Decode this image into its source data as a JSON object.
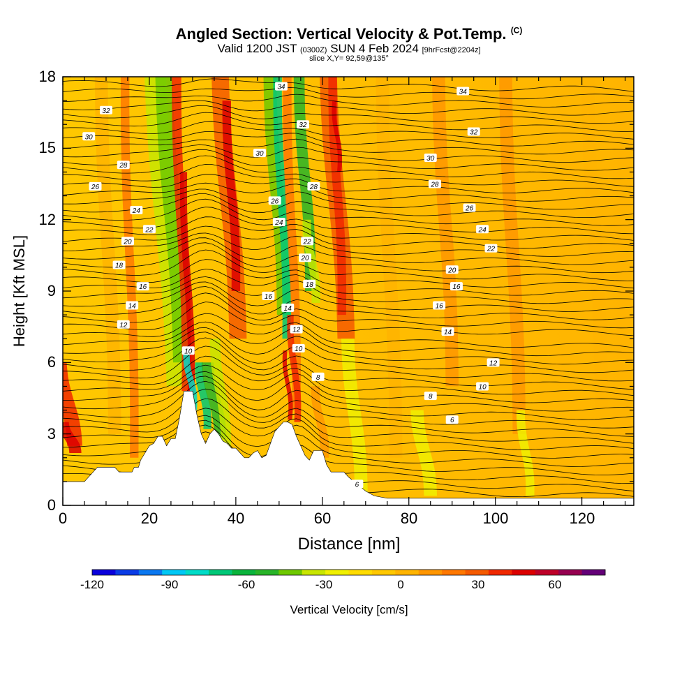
{
  "title": {
    "main": "Angled Section: Vertical Velocity & Pot.Temp.",
    "main_unit": "(C)",
    "valid_prefix": "Valid 1200 JST",
    "valid_utc": "(0300Z)",
    "valid_date": "SUN 4 Feb 2024",
    "forecast": "[9hrFcst@2204z]",
    "slice": "slice X,Y= 92,59@135°"
  },
  "chart_data": {
    "type": "heatmap",
    "xlabel": "Distance [nm]",
    "ylabel": "Height [Kft MSL]",
    "xlim": [
      0,
      132
    ],
    "ylim": [
      0,
      18
    ],
    "x_ticks": [
      "0",
      "20",
      "40",
      "60",
      "80",
      "100",
      "120"
    ],
    "x_tick_values": [
      0,
      20,
      40,
      60,
      80,
      100,
      120
    ],
    "y_ticks": [
      "0",
      "3",
      "6",
      "9",
      "12",
      "15",
      "18"
    ],
    "y_tick_values": [
      0,
      3,
      6,
      9,
      12,
      15,
      18
    ],
    "colorbar": {
      "label": "Vertical Velocity [cm/s]",
      "ticks": [
        "-120",
        "-90",
        "-60",
        "-30",
        "0",
        "30",
        "60"
      ],
      "tick_values": [
        -120,
        -90,
        -60,
        -30,
        0,
        30,
        60
      ],
      "range": [
        -120,
        80
      ],
      "colors": [
        "#0a00dc",
        "#0a3ce6",
        "#0a78f0",
        "#00c8f5",
        "#00dcc8",
        "#00c878",
        "#0ab43c",
        "#28b428",
        "#6ec800",
        "#c8e600",
        "#f0f000",
        "#ffdc00",
        "#ffc800",
        "#ffb400",
        "#ff9600",
        "#ff7800",
        "#f55a00",
        "#f02800",
        "#dc0000",
        "#be0028",
        "#960050",
        "#640078"
      ]
    },
    "terrain_top_kft": [
      [
        0,
        1.0
      ],
      [
        5,
        1.0
      ],
      [
        6,
        1.2
      ],
      [
        8,
        1.6
      ],
      [
        12,
        1.6
      ],
      [
        13,
        1.4
      ],
      [
        16,
        1.4
      ],
      [
        16.5,
        1.6
      ],
      [
        17.5,
        1.6
      ],
      [
        18,
        1.9
      ],
      [
        19,
        2.2
      ],
      [
        20,
        2.5
      ],
      [
        21,
        2.6
      ],
      [
        22,
        2.9
      ],
      [
        23,
        2.9
      ],
      [
        24,
        2.5
      ],
      [
        25,
        2.8
      ],
      [
        26,
        2.8
      ],
      [
        27,
        3.7
      ],
      [
        28,
        4.8
      ],
      [
        29,
        4.8
      ],
      [
        30,
        4.8
      ],
      [
        31,
        3.8
      ],
      [
        32,
        3.0
      ],
      [
        33,
        2.6
      ],
      [
        34,
        3.0
      ],
      [
        35,
        3.2
      ],
      [
        36,
        3.0
      ],
      [
        37,
        2.7
      ],
      [
        38,
        2.6
      ],
      [
        39,
        2.4
      ],
      [
        40,
        2.4
      ],
      [
        41,
        2.2
      ],
      [
        42,
        2.0
      ],
      [
        43,
        2.0
      ],
      [
        44,
        2.2
      ],
      [
        45,
        2.3
      ],
      [
        46,
        2.0
      ],
      [
        47,
        2.1
      ],
      [
        48,
        2.6
      ],
      [
        49,
        3.1
      ],
      [
        50,
        3.3
      ],
      [
        51,
        3.5
      ],
      [
        52,
        3.5
      ],
      [
        53,
        3.4
      ],
      [
        54,
        2.9
      ],
      [
        55,
        2.5
      ],
      [
        56,
        2.1
      ],
      [
        57,
        1.9
      ],
      [
        58,
        2.3
      ],
      [
        60,
        2.3
      ],
      [
        61,
        1.7
      ],
      [
        62,
        1.4
      ],
      [
        65,
        1.4
      ],
      [
        66,
        1.2
      ],
      [
        68,
        0.9
      ],
      [
        70,
        0.6
      ],
      [
        72,
        0.4
      ],
      [
        75,
        0.3
      ],
      [
        132,
        0.3
      ]
    ],
    "contour_labels": [
      {
        "text": "34",
        "x": 50.5,
        "y": 17.6
      },
      {
        "text": "34",
        "x": 92.5,
        "y": 17.4
      },
      {
        "text": "32",
        "x": 10,
        "y": 16.6
      },
      {
        "text": "32",
        "x": 55.5,
        "y": 16.0
      },
      {
        "text": "32",
        "x": 95,
        "y": 15.7
      },
      {
        "text": "30",
        "x": 6,
        "y": 15.5
      },
      {
        "text": "30",
        "x": 45.5,
        "y": 14.8
      },
      {
        "text": "30",
        "x": 85,
        "y": 14.6
      },
      {
        "text": "28",
        "x": 14,
        "y": 14.3
      },
      {
        "text": "28",
        "x": 58,
        "y": 13.4
      },
      {
        "text": "28",
        "x": 86,
        "y": 13.5
      },
      {
        "text": "26",
        "x": 7.5,
        "y": 13.4
      },
      {
        "text": "26",
        "x": 49,
        "y": 12.8
      },
      {
        "text": "26",
        "x": 94,
        "y": 12.5
      },
      {
        "text": "24",
        "x": 17,
        "y": 12.4
      },
      {
        "text": "24",
        "x": 50,
        "y": 11.9
      },
      {
        "text": "24",
        "x": 97,
        "y": 11.6
      },
      {
        "text": "22",
        "x": 20,
        "y": 11.6
      },
      {
        "text": "22",
        "x": 56.5,
        "y": 11.1
      },
      {
        "text": "22",
        "x": 99,
        "y": 10.8
      },
      {
        "text": "20",
        "x": 15,
        "y": 11.1
      },
      {
        "text": "20",
        "x": 56,
        "y": 10.4
      },
      {
        "text": "20",
        "x": 90,
        "y": 9.9
      },
      {
        "text": "18",
        "x": 13,
        "y": 10.1
      },
      {
        "text": "18",
        "x": 57,
        "y": 9.3
      },
      {
        "text": "16",
        "x": 18.5,
        "y": 9.2
      },
      {
        "text": "16",
        "x": 47.5,
        "y": 8.8
      },
      {
        "text": "16",
        "x": 91,
        "y": 9.2
      },
      {
        "text": "16",
        "x": 87,
        "y": 8.4
      },
      {
        "text": "14",
        "x": 16,
        "y": 8.4
      },
      {
        "text": "14",
        "x": 52,
        "y": 8.3
      },
      {
        "text": "14",
        "x": 89,
        "y": 7.3
      },
      {
        "text": "12",
        "x": 14,
        "y": 7.6
      },
      {
        "text": "12",
        "x": 54,
        "y": 7.4
      },
      {
        "text": "12",
        "x": 99.5,
        "y": 6.0
      },
      {
        "text": "10",
        "x": 29,
        "y": 6.5
      },
      {
        "text": "10",
        "x": 54.5,
        "y": 6.6
      },
      {
        "text": "10",
        "x": 97,
        "y": 5.0
      },
      {
        "text": "8",
        "x": 59,
        "y": 5.4
      },
      {
        "text": "8",
        "x": 85,
        "y": 4.6
      },
      {
        "text": "6",
        "x": 90,
        "y": 3.6
      },
      {
        "text": "6",
        "x": 68,
        "y": 0.9
      }
    ]
  }
}
